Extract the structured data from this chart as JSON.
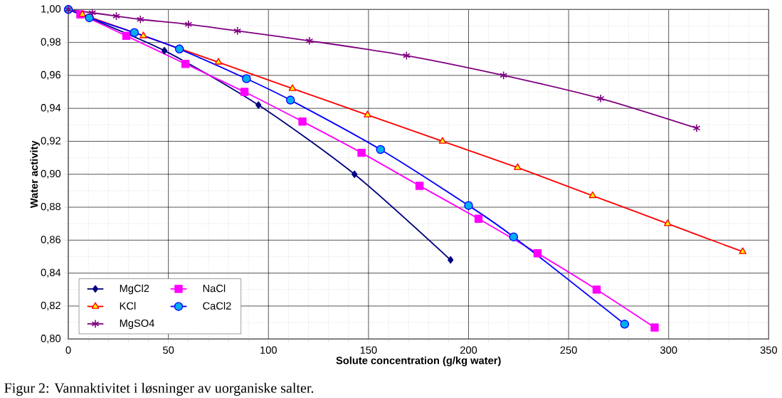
{
  "chart_data": {
    "type": "line",
    "xlabel": "Solute concentration (g/kg water)",
    "ylabel": "Water activity",
    "annotations": [
      "Figur 2: Vannaktivitet i løsninger av uorganiske salter."
    ],
    "xlim": [
      0,
      350
    ],
    "xticks": [
      0,
      50,
      100,
      150,
      200,
      250,
      300,
      350
    ],
    "ylim": [
      0.8,
      1.0
    ],
    "yticks": [
      {
        "value": 0.8,
        "label": "0,80"
      },
      {
        "value": 0.82,
        "label": "0,82"
      },
      {
        "value": 0.84,
        "label": "0,84"
      },
      {
        "value": 0.86,
        "label": "0,86"
      },
      {
        "value": 0.88,
        "label": "0,88"
      },
      {
        "value": 0.9,
        "label": "0,90"
      },
      {
        "value": 0.92,
        "label": "0,92"
      },
      {
        "value": 0.94,
        "label": "0,94"
      },
      {
        "value": 0.96,
        "label": "0,96"
      },
      {
        "value": 0.98,
        "label": "0,98"
      },
      {
        "value": 1.0,
        "label": "1,00"
      }
    ],
    "grid": true,
    "legend": "bottom left",
    "series": [
      {
        "name": "MgCl2",
        "color": "#000080",
        "marker": "diamond",
        "x": [
          0,
          48,
          95,
          143,
          191
        ],
        "values": [
          1.0,
          0.975,
          0.942,
          0.9,
          0.848
        ]
      },
      {
        "name": "NaCl",
        "color": "#ff00ff",
        "marker": "square",
        "x": [
          6,
          29,
          58.5,
          88,
          117,
          146.5,
          175.5,
          205,
          234.5,
          264,
          293
        ],
        "values": [
          0.997,
          0.984,
          0.967,
          0.95,
          0.932,
          0.913,
          0.893,
          0.873,
          0.852,
          0.83,
          0.807
        ]
      },
      {
        "name": "KCl",
        "color": "#ff0000",
        "marker": "triangle",
        "x": [
          0,
          7,
          37.5,
          75,
          112,
          149.5,
          187,
          224.5,
          262,
          299.5,
          337
        ],
        "values": [
          1.0,
          0.997,
          0.984,
          0.968,
          0.952,
          0.936,
          0.92,
          0.904,
          0.887,
          0.87,
          0.853
        ]
      },
      {
        "name": "CaCl2",
        "color": "#0000ff",
        "marker": "circle",
        "x": [
          0,
          10.5,
          33,
          55.5,
          89,
          111,
          156,
          200,
          222.5,
          278
        ],
        "values": [
          1.0,
          0.995,
          0.986,
          0.976,
          0.958,
          0.945,
          0.915,
          0.881,
          0.862,
          0.809
        ]
      },
      {
        "name": "MgSO4",
        "color": "#800080",
        "marker": "cross",
        "x": [
          0,
          12,
          24,
          36,
          60,
          84.5,
          120.5,
          169,
          217.5,
          266,
          314
        ],
        "values": [
          1.0,
          0.998,
          0.996,
          0.994,
          0.991,
          0.987,
          0.981,
          0.972,
          0.96,
          0.946,
          0.928
        ]
      }
    ]
  }
}
